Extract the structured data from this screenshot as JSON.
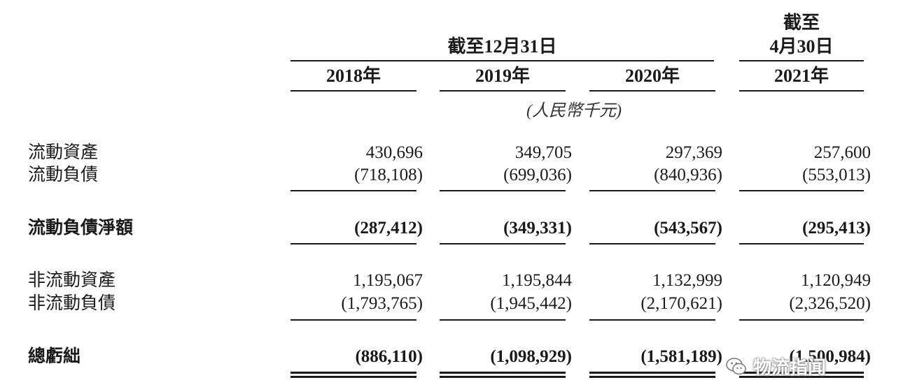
{
  "header": {
    "period_dec": "截至12月31日",
    "period_apr_line1": "截至",
    "period_apr_line2": "4月30日",
    "years": [
      "2018年",
      "2019年",
      "2020年",
      "2021年"
    ],
    "unit": "(人民幣千元)"
  },
  "rows": [
    {
      "label": "流動資產",
      "values": [
        "430,696",
        "349,705",
        "297,369",
        "257,600"
      ]
    },
    {
      "label": "流動負債",
      "values": [
        "(718,108)",
        "(699,036)",
        "(840,936)",
        "(553,013)"
      ]
    },
    {
      "label": "流動負債淨額",
      "values": [
        "(287,412)",
        "(349,331)",
        "(543,567)",
        "(295,413)"
      ]
    },
    {
      "label": "非流動資產",
      "values": [
        "1,195,067",
        "1,195,844",
        "1,132,999",
        "1,120,949"
      ]
    },
    {
      "label": "非流動負債",
      "values": [
        "(1,793,765)",
        "(1,945,442)",
        "(2,170,621)",
        "(2,326,520)"
      ]
    },
    {
      "label": "總虧絀",
      "values": [
        "(886,110)",
        "(1,098,929)",
        "(1,581,189)",
        "(1,500,984)"
      ]
    }
  ],
  "watermark": {
    "text": "物流指闻",
    "icon": "wechat-icon"
  }
}
